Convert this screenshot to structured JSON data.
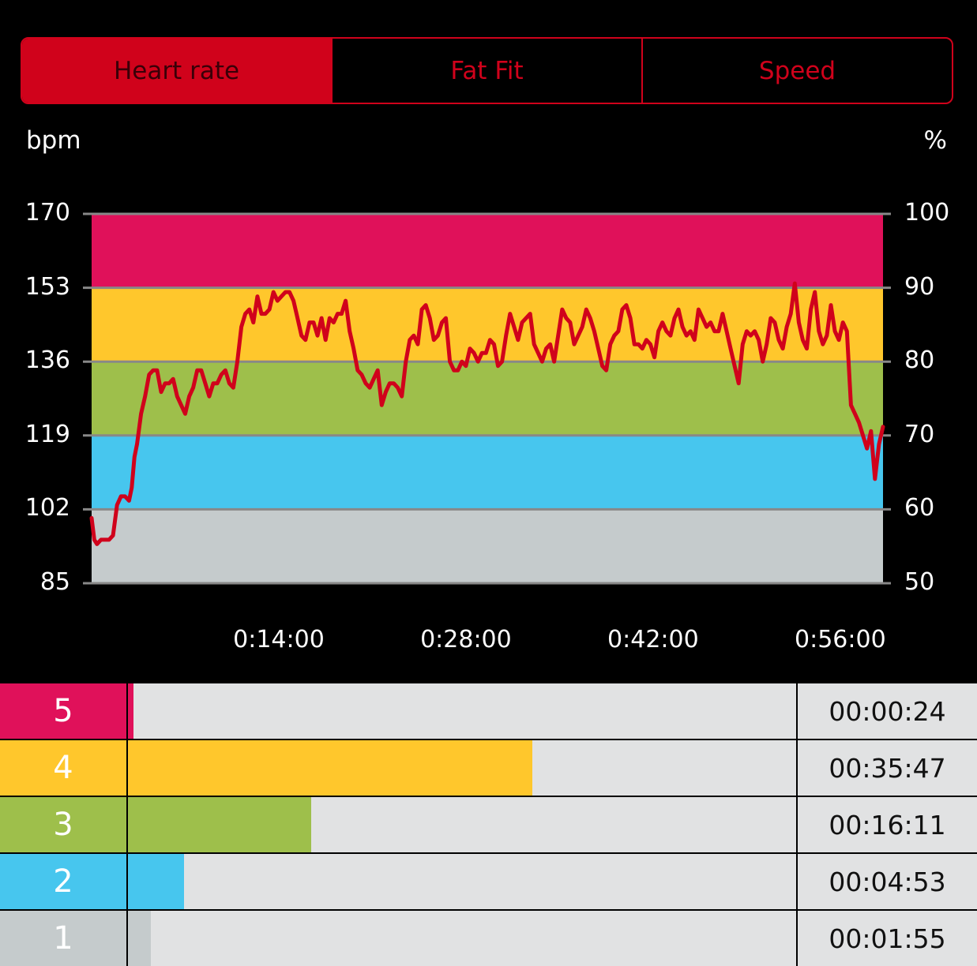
{
  "tabs": [
    {
      "label": "Heart rate",
      "active": true
    },
    {
      "label": "Fat Fit",
      "active": false
    },
    {
      "label": "Speed",
      "active": false
    }
  ],
  "colors": {
    "accent": "#d0021b",
    "zone5": "#e0115a",
    "zone4": "#ffc72c",
    "zone3": "#9ebf4b",
    "zone2": "#47c6ee",
    "zone1": "#c5cbcc",
    "line": "#d0021b",
    "track": "#e1e2e3"
  },
  "chart_data": {
    "type": "line",
    "title": "Heart rate",
    "ylabel": "bpm",
    "y2label": "%",
    "ylim": [
      85,
      170
    ],
    "y2lim": [
      50,
      100
    ],
    "yticks": [
      "170",
      "153",
      "136",
      "119",
      "102",
      "85"
    ],
    "y2ticks": [
      "100",
      "90",
      "80",
      "70",
      "60",
      "50"
    ],
    "xticks": [
      "0:14:00",
      "0:28:00",
      "0:42:00",
      "0:56:00"
    ],
    "xlim_minutes": [
      0,
      59.2
    ],
    "zones_bpm": [
      {
        "zone": 5,
        "from": 153,
        "to": 170
      },
      {
        "zone": 4,
        "from": 136,
        "to": 153
      },
      {
        "zone": 3,
        "from": 119,
        "to": 136
      },
      {
        "zone": 2,
        "from": 102,
        "to": 119
      },
      {
        "zone": 1,
        "from": 85,
        "to": 102
      }
    ],
    "series": [
      {
        "name": "Heart rate",
        "x_minutes": [
          0,
          0.2,
          0.4,
          0.7,
          1.0,
          1.3,
          1.6,
          1.9,
          2.2,
          2.5,
          2.8,
          3.0,
          3.2,
          3.4,
          3.7,
          4.0,
          4.3,
          4.6,
          4.9,
          5.2,
          5.5,
          5.8,
          6.1,
          6.4,
          6.7,
          7.0,
          7.3,
          7.6,
          7.9,
          8.2,
          8.5,
          8.8,
          9.1,
          9.4,
          9.7,
          10.0,
          10.3,
          10.6,
          10.9,
          11.2,
          11.5,
          11.8,
          12.1,
          12.4,
          12.7,
          13.0,
          13.3,
          13.6,
          13.9,
          14.2,
          14.5,
          14.8,
          15.1,
          15.4,
          15.7,
          16.0,
          16.3,
          16.6,
          16.9,
          17.2,
          17.5,
          17.8,
          18.1,
          18.4,
          18.7,
          19.0,
          19.3,
          19.6,
          19.9,
          20.2,
          20.5,
          20.8,
          21.1,
          21.4,
          21.7,
          22.0,
          22.3,
          22.6,
          22.9,
          23.2,
          23.5,
          23.8,
          24.1,
          24.4,
          24.7,
          25.0,
          25.3,
          25.6,
          25.9,
          26.2,
          26.5,
          26.8,
          27.1,
          27.4,
          27.7,
          28.0,
          28.3,
          28.6,
          28.9,
          29.2,
          29.5,
          29.8,
          30.1,
          30.4,
          30.7,
          31.0,
          31.3,
          31.6,
          31.9,
          32.2,
          32.5,
          32.8,
          33.1,
          33.4,
          33.7,
          34.0,
          34.3,
          34.6,
          34.9,
          35.2,
          35.5,
          35.8,
          36.1,
          36.4,
          36.7,
          37.0,
          37.3,
          37.6,
          37.9,
          38.2,
          38.5,
          38.8,
          39.1,
          39.4,
          39.7,
          40.0,
          40.3,
          40.6,
          40.9,
          41.2,
          41.5,
          41.8,
          42.1,
          42.4,
          42.7,
          43.0,
          43.3,
          43.6,
          43.9,
          44.2,
          44.5,
          44.8,
          45.1,
          45.4,
          45.7,
          46.0,
          46.3,
          46.6,
          46.9,
          47.2,
          47.5,
          47.8,
          48.1,
          48.4,
          48.7,
          49.0,
          49.3,
          49.6,
          49.9,
          50.2,
          50.5,
          50.8,
          51.1,
          51.4,
          51.7,
          52.0,
          52.3,
          52.6,
          52.9,
          53.2,
          53.5,
          53.8,
          54.1,
          54.4,
          54.7,
          55.0,
          55.3,
          55.6,
          55.9,
          56.2,
          56.5,
          56.8,
          57.1,
          57.4,
          57.7,
          58.0,
          58.3,
          58.6,
          58.9,
          59.2
        ],
        "bpm": [
          100,
          95,
          94,
          95,
          95,
          95,
          96,
          103,
          105,
          105,
          104,
          107,
          114,
          117,
          124,
          128,
          133,
          134,
          134,
          129,
          131,
          131,
          132,
          128,
          126,
          124,
          128,
          130,
          134,
          134,
          131,
          128,
          131,
          131,
          133,
          134,
          131,
          130,
          136,
          144,
          147,
          148,
          145,
          151,
          147,
          147,
          148,
          152,
          150,
          151,
          152,
          152,
          150,
          146,
          142,
          141,
          145,
          145,
          142,
          146,
          141,
          146,
          145,
          147,
          147,
          150,
          143,
          139,
          134,
          133,
          131,
          130,
          132,
          134,
          126,
          129,
          131,
          131,
          130,
          128,
          136,
          141,
          142,
          140,
          148,
          149,
          146,
          141,
          142,
          145,
          146,
          136,
          134,
          134,
          136,
          135,
          139,
          138,
          136,
          138,
          138,
          141,
          140,
          135,
          136,
          142,
          147,
          144,
          141,
          145,
          146,
          147,
          140,
          138,
          136,
          139,
          140,
          136,
          142,
          148,
          146,
          145,
          140,
          142,
          144,
          148,
          146,
          143,
          139,
          135,
          134,
          140,
          142,
          143,
          148,
          149,
          146,
          140,
          140,
          139,
          141,
          140,
          137,
          143,
          145,
          143,
          142,
          146,
          148,
          144,
          142,
          143,
          141,
          148,
          146,
          144,
          145,
          143,
          143,
          147,
          143,
          139,
          135,
          131,
          140,
          143,
          142,
          143,
          141,
          136,
          140,
          146,
          145,
          141,
          139,
          144,
          147,
          154,
          145,
          141,
          139,
          148,
          152,
          143,
          140,
          142,
          149,
          143,
          141,
          145,
          143,
          126,
          124,
          122,
          119,
          116,
          120,
          109,
          117,
          121,
          108,
          114,
          112,
          103,
          111,
          105,
          114,
          104
        ]
      }
    ]
  },
  "chart_labels": {
    "unit_left": "bpm",
    "unit_right": "%",
    "yticks_left": [
      "170",
      "153",
      "136",
      "119",
      "102",
      "85"
    ],
    "yticks_right": [
      "100",
      "90",
      "80",
      "70",
      "60",
      "50"
    ],
    "xticks": [
      "0:14:00",
      "0:28:00",
      "0:42:00",
      "0:56:00"
    ]
  },
  "zones": [
    {
      "zone": "5",
      "time": "00:00:24",
      "fraction": 0.008,
      "color": "#e0115a"
    },
    {
      "zone": "4",
      "time": "00:35:47",
      "fraction": 0.605,
      "color": "#ffc72c"
    },
    {
      "zone": "3",
      "time": "00:16:11",
      "fraction": 0.274,
      "color": "#9ebf4b"
    },
    {
      "zone": "2",
      "time": "00:04:53",
      "fraction": 0.084,
      "color": "#47c6ee"
    },
    {
      "zone": "1",
      "time": "00:01:55",
      "fraction": 0.034,
      "color": "#c5cbcc"
    }
  ]
}
